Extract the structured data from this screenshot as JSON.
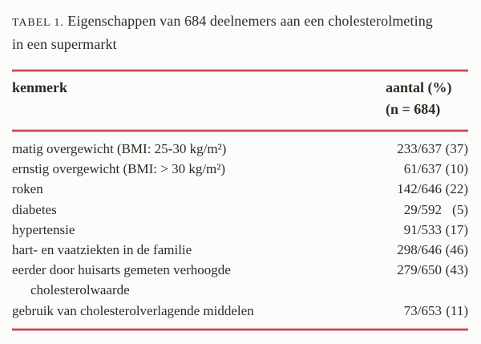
{
  "caption": {
    "label": "TABEL 1.",
    "line1": "Eigenschappen van 684 deelnemers aan een cholesterolmeting",
    "line2": "in een supermarkt"
  },
  "table": {
    "header": {
      "kenmerk": "kenmerk",
      "aantal": "aantal (%)",
      "n": "(n = 684)"
    },
    "rows": [
      {
        "kenmerk": "matig overgewicht (BMI: 25-30 kg/m²)",
        "fraction": "233/637",
        "percent": "(37)"
      },
      {
        "kenmerk": "ernstig overgewicht (BMI: > 30 kg/m²)",
        "fraction": "61/637",
        "percent": "(10)"
      },
      {
        "kenmerk": "roken",
        "fraction": "142/646",
        "percent": "(22)"
      },
      {
        "kenmerk": "diabetes",
        "fraction": "29/592",
        "percent": "(5)"
      },
      {
        "kenmerk": "hypertensie",
        "fraction": "91/533",
        "percent": "(17)"
      },
      {
        "kenmerk": "hart- en vaatziekten in de familie",
        "fraction": "298/646",
        "percent": "(46)"
      },
      {
        "kenmerk": "eerder door huisarts gemeten verhoogde",
        "kenmerk_line2": "cholesterolwaarde",
        "fraction": "279/650",
        "percent": "(43)"
      },
      {
        "kenmerk": "gebruik van cholesterolverlagende middelen",
        "fraction": "73/653",
        "percent": "(11)"
      }
    ]
  },
  "colors": {
    "rule_red": "#c44a52",
    "text": "#2e2b27",
    "background": "#fcfcfb"
  }
}
